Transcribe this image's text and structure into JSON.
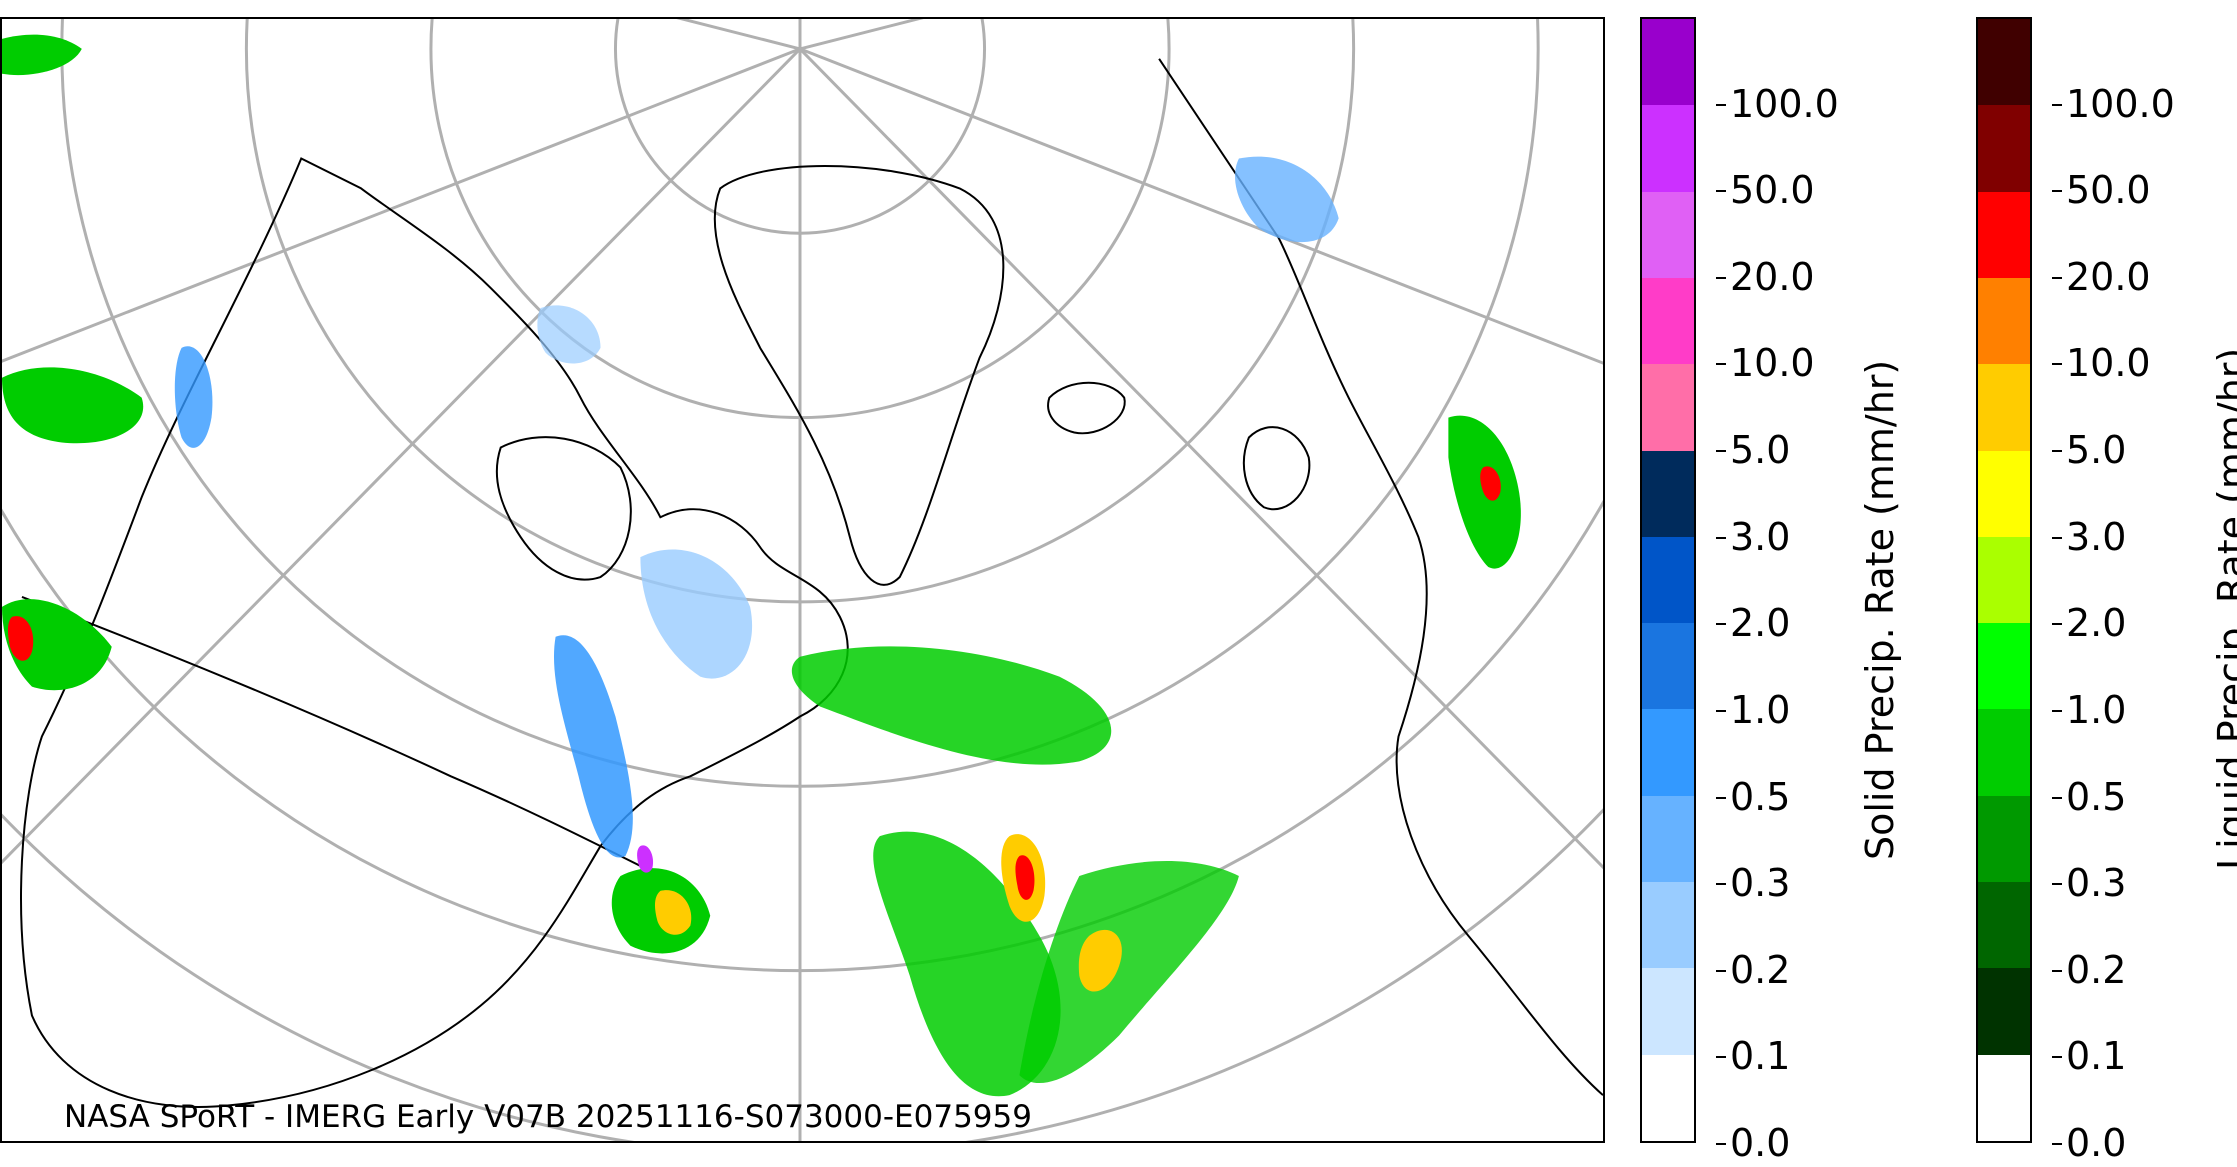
{
  "map": {
    "credit": "NASA SPoRT - IMERG Early V07B 20251116-S073000-E075959"
  },
  "solid_colorbar": {
    "label": "Solid Precip. Rate (mm/hr)",
    "ticks": [
      "0.0",
      "0.1",
      "0.2",
      "0.3",
      "0.5",
      "1.0",
      "2.0",
      "3.0",
      "5.0",
      "10.0",
      "20.0",
      "50.0",
      "100.0"
    ],
    "colors": [
      "#ffffff",
      "#cce6ff",
      "#99ccff",
      "#66b2ff",
      "#3399ff",
      "#1a75e0",
      "#0055c8",
      "#002b5c",
      "#ff6ea8",
      "#ff3cc8",
      "#e060f5",
      "#cc30ff",
      "#9900cc"
    ]
  },
  "liquid_colorbar": {
    "label": "Liquid Precip. Rate (mm/hr)",
    "ticks": [
      "0.0",
      "0.1",
      "0.2",
      "0.3",
      "0.5",
      "1.0",
      "2.0",
      "3.0",
      "5.0",
      "10.0",
      "20.0",
      "50.0",
      "100.0"
    ],
    "colors": [
      "#ffffff",
      "#003300",
      "#006600",
      "#009900",
      "#00cc00",
      "#00ff00",
      "#aaff00",
      "#ffff00",
      "#ffcc00",
      "#ff8000",
      "#ff0000",
      "#800000",
      "#400000"
    ]
  }
}
